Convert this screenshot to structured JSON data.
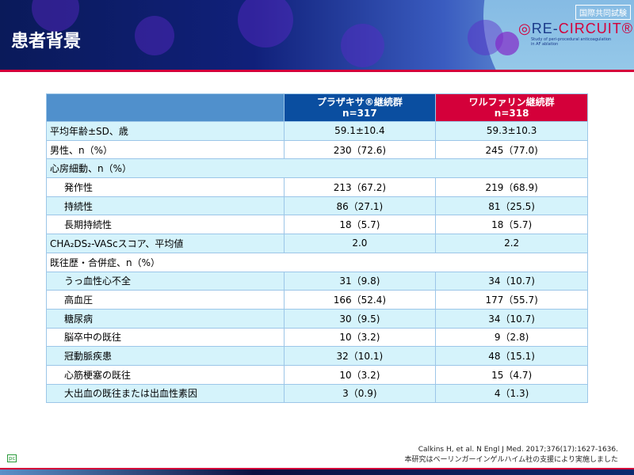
{
  "header": {
    "title": "患者背景",
    "badge": "国際共同試験",
    "logo_text": "RE-CIRCUIT®",
    "logo_sub": "Study of peri-procedural anticoagulation in AF ablation"
  },
  "table": {
    "columns": [
      {
        "label": "プラザキサ®継続群",
        "n": "n=317"
      },
      {
        "label": "ワルファリン継続群",
        "n": "n=318"
      }
    ],
    "rows": [
      {
        "label": "平均年齢±SD、歳",
        "a": "59.1±10.4",
        "b": "59.3±10.3",
        "indent": false
      },
      {
        "label": "男性、n（%）",
        "a": "230（72.6)",
        "b": "245（77.0)",
        "indent": false
      },
      {
        "label": "心房細動、n（%）",
        "a": "",
        "b": "",
        "indent": false,
        "section": true
      },
      {
        "label": "発作性",
        "a": "213（67.2)",
        "b": "219（68.9)",
        "indent": true
      },
      {
        "label": "持続性",
        "a": "86（27.1)",
        "b": "81（25.5)",
        "indent": true
      },
      {
        "label": "長期持続性",
        "a": "18（5.7)",
        "b": "18（5.7)",
        "indent": true
      },
      {
        "label": "CHA₂DS₂-VAScスコア、平均値",
        "a": "2.0",
        "b": "2.2",
        "indent": false
      },
      {
        "label": "既往歴・合併症、n（%）",
        "a": "",
        "b": "",
        "indent": false,
        "section": true
      },
      {
        "label": "うっ血性心不全",
        "a": "31（9.8)",
        "b": "34（10.7)",
        "indent": true
      },
      {
        "label": "高血圧",
        "a": "166（52.4)",
        "b": "177（55.7)",
        "indent": true
      },
      {
        "label": "糖尿病",
        "a": "30（9.5)",
        "b": "34（10.7)",
        "indent": true
      },
      {
        "label": "脳卒中の既往",
        "a": "10（3.2)",
        "b": "9（2.8)",
        "indent": true
      },
      {
        "label": "冠動脈疾患",
        "a": "32（10.1)",
        "b": "48（15.1)",
        "indent": true
      },
      {
        "label": "心筋梗塞の既往",
        "a": "10（3.2)",
        "b": "15（4.7)",
        "indent": true
      },
      {
        "label": "大出血の既往または出血性素因",
        "a": "3（0.9)",
        "b": "4（1.3)",
        "indent": true
      }
    ]
  },
  "footer": {
    "reference": "Calkins H, et al. N Engl J Med. 2017;376(17):1627-1636.",
    "support": "本研究はベーリンガーインゲルハイム社の支援により実施しました",
    "pc_mark": "pc"
  },
  "colors": {
    "accent_red": "#d4003a",
    "pradaxa_blue": "#0a4ea0",
    "row_cyan": "#d5f3fb"
  }
}
